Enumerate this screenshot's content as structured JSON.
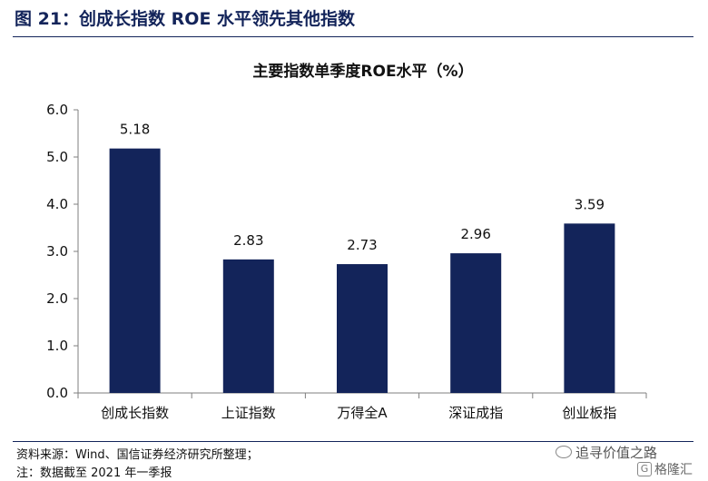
{
  "figure_title": "图 21：创成长指数 ROE 水平领先其他指数",
  "footer": {
    "source": "资料来源：Wind、国信证券经济研究所整理；",
    "note": "注：数据截至 2021 年一季报"
  },
  "watermark": {
    "wechat_label": "追寻价值之路",
    "site_label": "格隆汇",
    "site_icon_text": "G"
  },
  "colors": {
    "bar": "#13245a",
    "title": "#13245a",
    "axis": "#7f7f7f"
  },
  "chart_data": {
    "type": "bar",
    "title": "主要指数单季度ROE水平（%）",
    "categories": [
      "创成长指数",
      "上证指数",
      "万得全A",
      "深证成指",
      "创业板指"
    ],
    "values": [
      5.18,
      2.83,
      2.73,
      2.96,
      3.59
    ],
    "data_labels": [
      "5.18",
      "2.83",
      "2.73",
      "2.96",
      "3.59"
    ],
    "ylim": [
      0,
      6
    ],
    "yticks": [
      "0.0",
      "1.0",
      "2.0",
      "3.0",
      "4.0",
      "5.0",
      "6.0"
    ],
    "xlabel": "",
    "ylabel": "",
    "grid": false,
    "legend": "none"
  }
}
